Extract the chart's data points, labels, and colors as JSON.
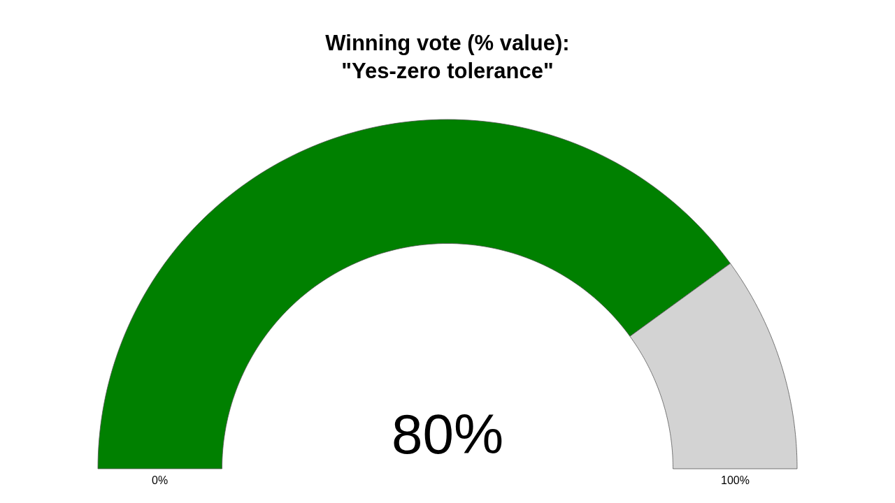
{
  "chart_data": {
    "type": "donut",
    "title": "Winning vote (% value):\n\"Yes-zero tolerance\"",
    "categories": [
      null,
      null
    ],
    "values": [
      80,
      20
    ],
    "colors": [
      "#008000",
      "#d3d3d3"
    ],
    "annotations": [
      "80%",
      "0%",
      "100%"
    ]
  }
}
